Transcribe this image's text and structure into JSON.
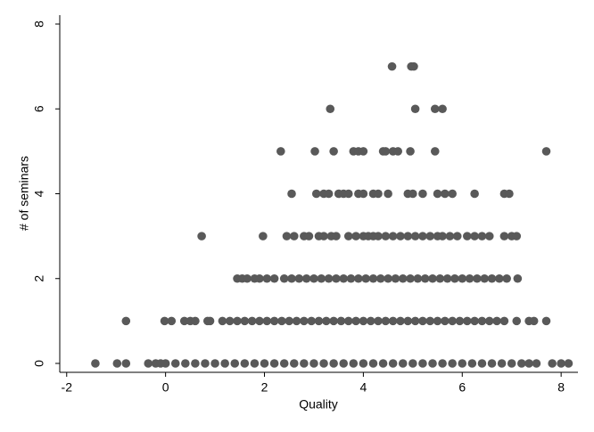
{
  "chart_data": {
    "type": "scatter",
    "xlabel": "Quality",
    "ylabel": "# of seminars",
    "color": "#595959",
    "xlim": [
      -2.14,
      8.34
    ],
    "ylim": [
      -0.21,
      8.21
    ],
    "xticks": [
      -2,
      0,
      2,
      4,
      6,
      8
    ],
    "yticks": [
      0,
      2,
      4,
      6,
      8
    ],
    "grid": false,
    "x": [
      -1.42,
      -0.98,
      -0.8,
      -0.35,
      -0.2,
      -0.1,
      0,
      0.2,
      0.4,
      0.6,
      0.8,
      1,
      1.2,
      1.4,
      1.6,
      1.8,
      2,
      2.2,
      2.4,
      2.6,
      2.8,
      3,
      3.2,
      3.4,
      3.6,
      3.8,
      4,
      4.2,
      4.4,
      4.6,
      4.8,
      5,
      5.2,
      5.4,
      5.6,
      5.8,
      6,
      6.2,
      6.4,
      6.6,
      6.8,
      7,
      7.2,
      7.35,
      7.5,
      7.82,
      8,
      8.15,
      -0.8,
      -0.02,
      0.12,
      0.38,
      0.5,
      0.6,
      0.85,
      0.9,
      1.15,
      1.3,
      1.45,
      1.6,
      1.75,
      1.9,
      2.05,
      2.2,
      2.35,
      2.5,
      2.65,
      2.8,
      2.95,
      3.1,
      3.25,
      3.4,
      3.55,
      3.7,
      3.85,
      4,
      4.15,
      4.3,
      4.45,
      4.6,
      4.75,
      4.9,
      5.05,
      5.2,
      5.35,
      5.5,
      5.65,
      5.8,
      5.95,
      6.1,
      6.25,
      6.4,
      6.55,
      6.7,
      6.85,
      7.1,
      7.35,
      7.45,
      7.7,
      1.45,
      1.55,
      1.65,
      1.8,
      1.9,
      2.05,
      2.2,
      2.4,
      2.55,
      2.7,
      2.85,
      3,
      3.15,
      3.3,
      3.45,
      3.6,
      3.75,
      3.9,
      4.05,
      4.2,
      4.35,
      4.5,
      4.65,
      4.8,
      4.95,
      5.1,
      5.25,
      5.4,
      5.55,
      5.7,
      5.85,
      6,
      6.15,
      6.3,
      6.45,
      6.6,
      6.75,
      6.9,
      7.12,
      0.73,
      1.97,
      2.45,
      2.6,
      2.8,
      2.9,
      3.1,
      3.2,
      3.35,
      3.45,
      3.7,
      3.85,
      4,
      4.1,
      4.2,
      4.3,
      4.45,
      4.6,
      4.75,
      4.9,
      5.05,
      5.2,
      5.35,
      5.5,
      5.6,
      5.75,
      5.9,
      6.1,
      6.25,
      6.4,
      6.55,
      6.85,
      7,
      7.1,
      2.55,
      3.05,
      3.2,
      3.3,
      3.5,
      3.6,
      3.7,
      3.9,
      4,
      4.2,
      4.3,
      4.5,
      4.9,
      5,
      5.2,
      5.5,
      5.65,
      5.8,
      6.25,
      6.85,
      6.95,
      2.33,
      3.02,
      3.4,
      3.8,
      3.9,
      4,
      4.4,
      4.45,
      4.6,
      4.7,
      4.95,
      5.45,
      7.7,
      3.33,
      5.05,
      5.45,
      5.6,
      4.58,
      4.97,
      5.02
    ],
    "values": [
      0,
      0,
      0,
      0,
      0,
      0,
      0,
      0,
      0,
      0,
      0,
      0,
      0,
      0,
      0,
      0,
      0,
      0,
      0,
      0,
      0,
      0,
      0,
      0,
      0,
      0,
      0,
      0,
      0,
      0,
      0,
      0,
      0,
      0,
      0,
      0,
      0,
      0,
      0,
      0,
      0,
      0,
      0,
      0,
      0,
      0,
      0,
      0,
      1,
      1,
      1,
      1,
      1,
      1,
      1,
      1,
      1,
      1,
      1,
      1,
      1,
      1,
      1,
      1,
      1,
      1,
      1,
      1,
      1,
      1,
      1,
      1,
      1,
      1,
      1,
      1,
      1,
      1,
      1,
      1,
      1,
      1,
      1,
      1,
      1,
      1,
      1,
      1,
      1,
      1,
      1,
      1,
      1,
      1,
      1,
      1,
      1,
      1,
      1,
      2,
      2,
      2,
      2,
      2,
      2,
      2,
      2,
      2,
      2,
      2,
      2,
      2,
      2,
      2,
      2,
      2,
      2,
      2,
      2,
      2,
      2,
      2,
      2,
      2,
      2,
      2,
      2,
      2,
      2,
      2,
      2,
      2,
      2,
      2,
      2,
      2,
      2,
      2,
      3,
      3,
      3,
      3,
      3,
      3,
      3,
      3,
      3,
      3,
      3,
      3,
      3,
      3,
      3,
      3,
      3,
      3,
      3,
      3,
      3,
      3,
      3,
      3,
      3,
      3,
      3,
      3,
      3,
      3,
      3,
      3,
      3,
      3,
      4,
      4,
      4,
      4,
      4,
      4,
      4,
      4,
      4,
      4,
      4,
      4,
      4,
      4,
      4,
      4,
      4,
      4,
      4,
      4,
      4,
      5,
      5,
      5,
      5,
      5,
      5,
      5,
      5,
      5,
      5,
      5,
      5,
      5,
      6,
      6,
      6,
      6,
      7,
      7,
      7
    ]
  }
}
